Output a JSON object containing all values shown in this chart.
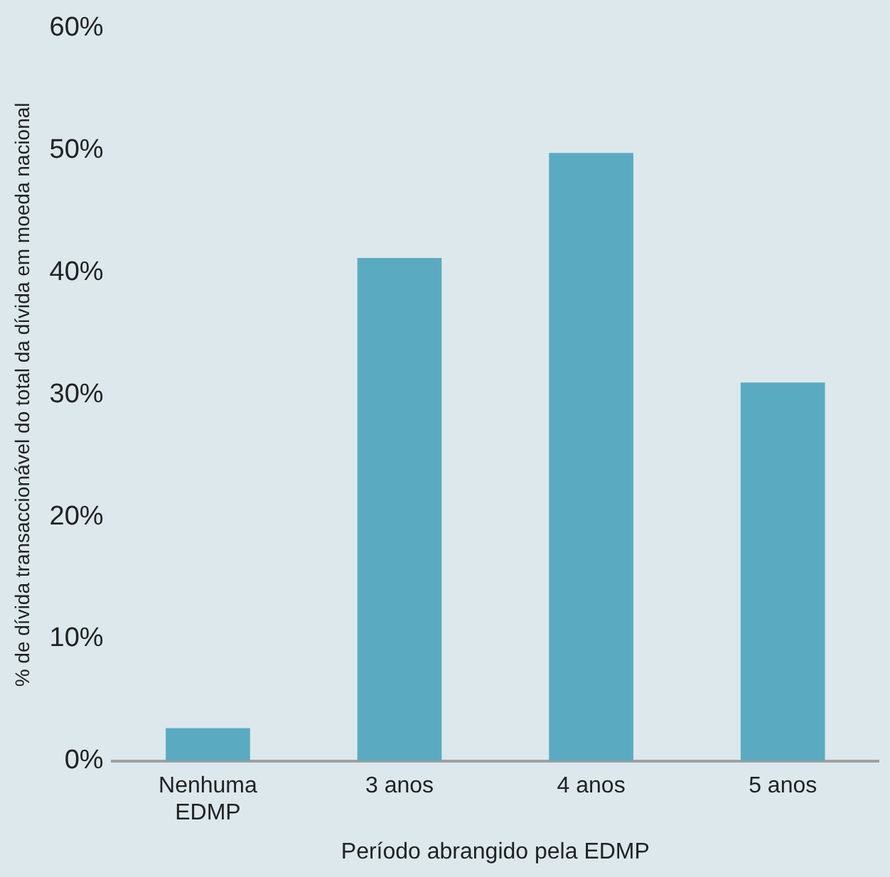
{
  "chart_data": {
    "type": "bar",
    "xlabel": "Período abrangido pela EDMP",
    "ylabel": "% de dívida transaccionável do total da dívida em moeda nacional",
    "categories": [
      "Nenhuma EDMP",
      "3 anos",
      "4 anos",
      "5 anos"
    ],
    "values": [
      2.7,
      41.2,
      49.8,
      31.0
    ],
    "color": "#5aabc1",
    "ylim": [
      0,
      60
    ],
    "yticks": [
      {
        "value": 0,
        "label": "0%"
      },
      {
        "value": 10,
        "label": "10%"
      },
      {
        "value": 20,
        "label": "20%"
      },
      {
        "value": 30,
        "label": "30%"
      },
      {
        "value": 40,
        "label": "40%"
      },
      {
        "value": 50,
        "label": "50%"
      },
      {
        "value": 60,
        "label": "60%"
      }
    ],
    "grid": false,
    "legend": false
  }
}
